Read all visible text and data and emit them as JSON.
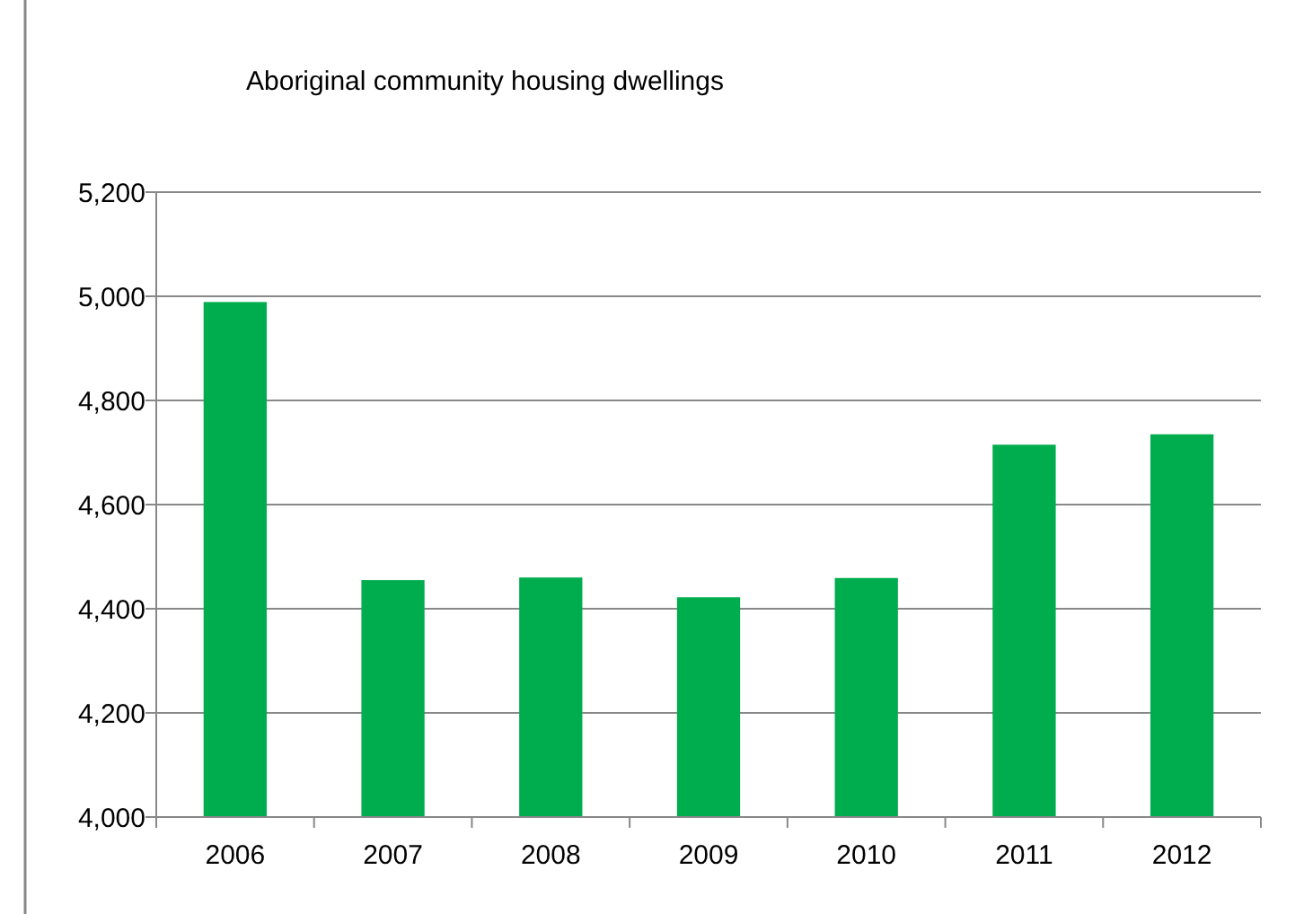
{
  "chart_data": {
    "type": "bar",
    "title": "Aboriginal community housing dwellings",
    "categories": [
      "2006",
      "2007",
      "2008",
      "2009",
      "2010",
      "2011",
      "2012"
    ],
    "values": [
      4989,
      4455,
      4460,
      4422,
      4459,
      4715,
      4735
    ],
    "color": "#00ad4e",
    "ylim": [
      4000,
      5200
    ],
    "yticks": [
      {
        "value": 4000,
        "label": "4,000"
      },
      {
        "value": 4200,
        "label": "4,200"
      },
      {
        "value": 4400,
        "label": "4,400"
      },
      {
        "value": 4600,
        "label": "4,600"
      },
      {
        "value": 4800,
        "label": "4,800"
      },
      {
        "value": 5000,
        "label": "5,000"
      },
      {
        "value": 5200,
        "label": "5,200"
      }
    ],
    "grid": "y"
  }
}
